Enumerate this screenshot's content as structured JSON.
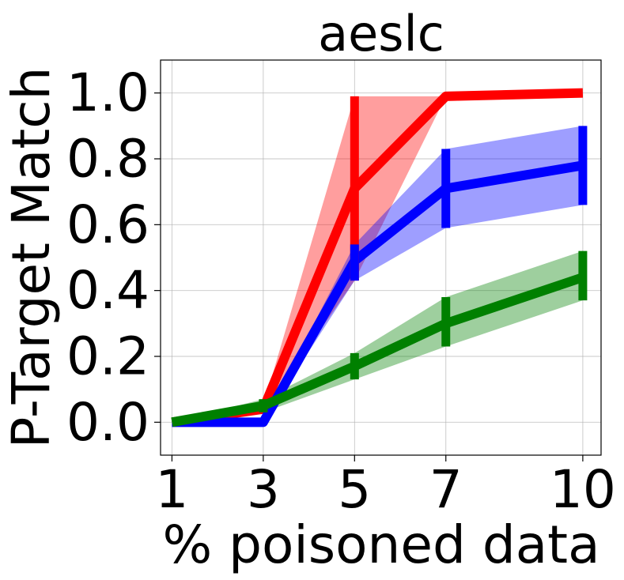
{
  "chart_data": {
    "type": "line",
    "title": "aeslc",
    "xlabel": "% poisoned data",
    "ylabel": "P-Target Match",
    "xlim": [
      0.75,
      10.4
    ],
    "ylim": [
      -0.1,
      1.1
    ],
    "x": [
      1,
      3,
      5,
      7,
      10
    ],
    "x_ticks": [
      "1",
      "3",
      "5",
      "7",
      "10"
    ],
    "y_ticks": [
      0.0,
      0.2,
      0.4,
      0.6,
      0.8,
      1.0
    ],
    "y_tick_labels": [
      "0.0",
      "0.2",
      "0.4",
      "0.6",
      "0.8",
      "1.0"
    ],
    "grid": true,
    "legend": "none",
    "series": [
      {
        "color": "#ff0000",
        "values": [
          0.0,
          0.04,
          0.71,
          0.99,
          1.0
        ],
        "lower": [
          0.0,
          0.03,
          0.43,
          0.99,
          1.0
        ],
        "upper": [
          0.0,
          0.05,
          0.99,
          0.99,
          1.0
        ]
      },
      {
        "color": "#0000ff",
        "values": [
          0.0,
          0.0,
          0.49,
          0.71,
          0.78
        ],
        "lower": [
          0.0,
          0.0,
          0.43,
          0.59,
          0.66
        ],
        "upper": [
          0.0,
          0.0,
          0.54,
          0.83,
          0.9
        ]
      },
      {
        "color": "#008000",
        "values": [
          0.0,
          0.05,
          0.17,
          0.3,
          0.44
        ],
        "lower": [
          0.0,
          0.03,
          0.13,
          0.23,
          0.37
        ],
        "upper": [
          0.0,
          0.07,
          0.21,
          0.38,
          0.52
        ]
      }
    ]
  }
}
